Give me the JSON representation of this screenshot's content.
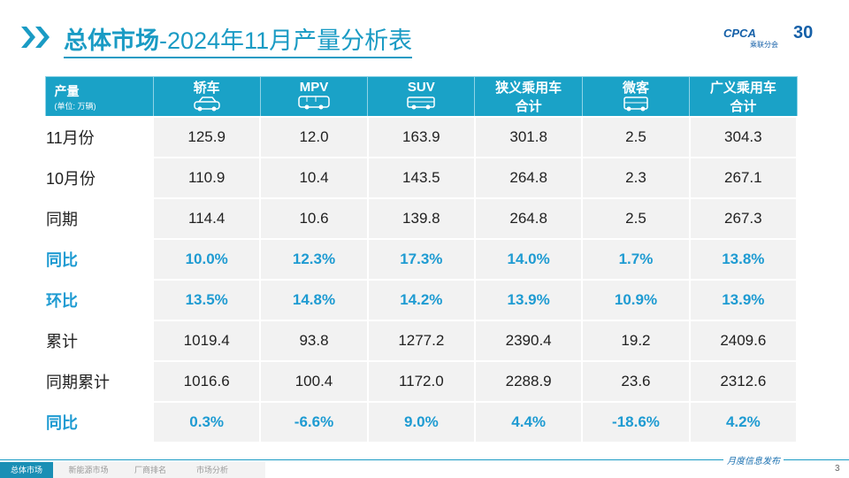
{
  "header": {
    "title_bold": "总体市场",
    "title_rest": "-2024年11月产量分析表",
    "logo_text": "CPCA",
    "logo_sub": "乘联分会",
    "logo_badge": "30"
  },
  "table": {
    "corner": {
      "title": "产量",
      "unit": "(单位: 万辆)"
    },
    "columns": [
      [
        "轿车"
      ],
      [
        "MPV"
      ],
      [
        "SUV"
      ],
      [
        "狭义乘用车",
        "合计"
      ],
      [
        "微客"
      ],
      [
        "广义乘用车",
        "合计"
      ]
    ],
    "rows": [
      [
        "11月份",
        "125.9",
        "12.0",
        "163.9",
        "301.8",
        "2.5",
        "304.3"
      ],
      [
        "10月份",
        "110.9",
        "10.4",
        "143.5",
        "264.8",
        "2.3",
        "267.1"
      ],
      [
        "同期",
        "114.4",
        "10.6",
        "139.8",
        "264.8",
        "2.5",
        "267.3"
      ],
      [
        "同比",
        "10.0%",
        "12.3%",
        "17.3%",
        "14.0%",
        "1.7%",
        "13.8%"
      ],
      [
        "环比",
        "13.5%",
        "14.8%",
        "14.2%",
        "13.9%",
        "10.9%",
        "13.9%"
      ],
      [
        "累计",
        "1019.4",
        "93.8",
        "1277.2",
        "2390.4",
        "19.2",
        "2409.6"
      ],
      [
        "同期累计",
        "1016.6",
        "100.4",
        "1172.0",
        "2288.9",
        "23.6",
        "2312.6"
      ],
      [
        "同比",
        "0.3%",
        "-6.6%",
        "9.0%",
        "4.4%",
        "-18.6%",
        "4.2%"
      ]
    ],
    "highlight_rows": [
      3,
      4,
      7
    ]
  },
  "footer": {
    "tabs": [
      "总体市场",
      "新能源市场",
      "厂商排名",
      "市场分析"
    ],
    "release": "月度信息发布",
    "page": "3"
  }
}
